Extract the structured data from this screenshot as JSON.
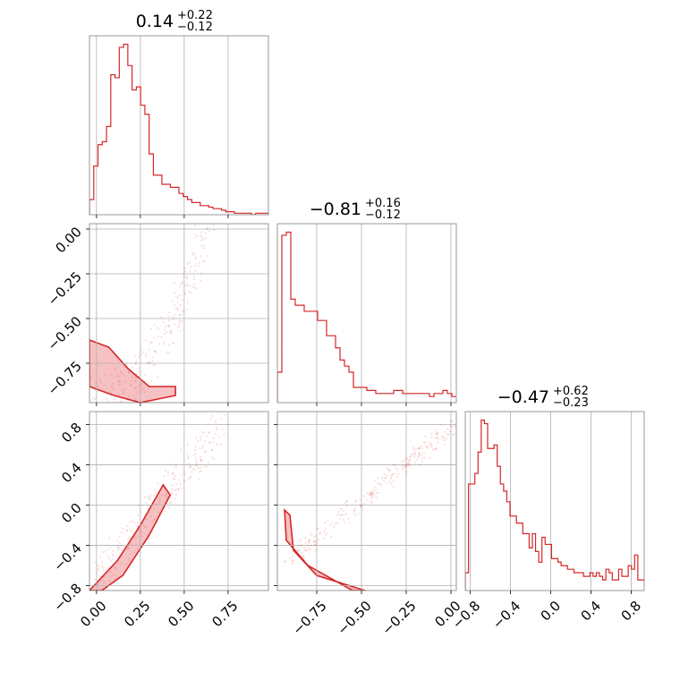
{
  "colors": {
    "main": "#d62728",
    "fill": "#f4b6b7",
    "grid": "#b0b0b0",
    "frame": "#808080"
  },
  "chart_data": {
    "type": "corner",
    "grid": true,
    "params": [
      {
        "range": [
          -0.04,
          0.98
        ],
        "ticks": [
          0.0,
          0.25,
          0.5,
          0.75
        ],
        "tick_labels": [
          "0.00",
          "0.25",
          "0.50",
          "0.75"
        ],
        "title": {
          "median": "0.14",
          "plus": "+0.22",
          "minus": "−0.12"
        }
      },
      {
        "range": [
          -0.97,
          0.03
        ],
        "ticks": [
          -0.75,
          -0.5,
          -0.25,
          0.0
        ],
        "tick_labels": [
          "−0.75",
          "−0.50",
          "−0.25",
          "0.00"
        ],
        "title": {
          "median": "−0.81",
          "plus": "+0.16",
          "minus": "−0.12"
        }
      },
      {
        "range": [
          -0.85,
          0.93
        ],
        "ticks": [
          -0.8,
          -0.4,
          0.0,
          0.4,
          0.8
        ],
        "tick_labels": [
          "−0.8",
          "−0.4",
          "0.0",
          "0.4",
          "0.8"
        ],
        "title": {
          "median": "−0.47",
          "plus": "+0.62",
          "minus": "−0.23"
        }
      }
    ],
    "histograms": [
      {
        "param": 0,
        "bin_edges_range": [
          -0.04,
          0.98
        ],
        "counts": [
          10,
          32,
          46,
          48,
          58,
          92,
          90,
          110,
          112,
          98,
          82,
          84,
          72,
          66,
          40,
          26,
          26,
          20,
          20,
          18,
          18,
          14,
          12,
          10,
          8,
          8,
          6,
          6,
          5,
          4,
          4,
          3,
          2,
          2,
          1,
          1,
          1,
          1,
          0,
          1,
          1,
          1
        ]
      },
      {
        "param": 1,
        "bin_edges_range": [
          -0.97,
          0.03
        ],
        "counts": [
          20,
          110,
          112,
          68,
          64,
          64,
          60,
          60,
          60,
          54,
          54,
          44,
          44,
          36,
          28,
          24,
          20,
          10,
          10,
          10,
          8,
          8,
          6,
          6,
          6,
          6,
          8,
          8,
          6,
          6,
          6,
          6,
          6,
          6,
          4,
          6,
          6,
          8,
          6,
          4
        ]
      },
      {
        "param": 2,
        "bin_edges_range": [
          -0.85,
          0.93
        ],
        "counts": [
          10,
          60,
          60,
          66,
          78,
          96,
          94,
          80,
          80,
          82,
          70,
          60,
          56,
          50,
          42,
          42,
          38,
          38,
          32,
          32,
          24,
          32,
          22,
          16,
          30,
          26,
          26,
          18,
          18,
          16,
          14,
          14,
          12,
          12,
          10,
          10,
          10,
          8,
          8,
          10,
          8,
          10,
          8,
          6,
          12,
          10,
          6,
          6,
          12,
          8,
          8,
          14,
          12,
          20,
          6,
          6
        ]
      }
    ],
    "pairs": [
      {
        "x_param": 0,
        "y_param": 1
      },
      {
        "x_param": 0,
        "y_param": 2
      },
      {
        "x_param": 1,
        "y_param": 2
      }
    ]
  }
}
